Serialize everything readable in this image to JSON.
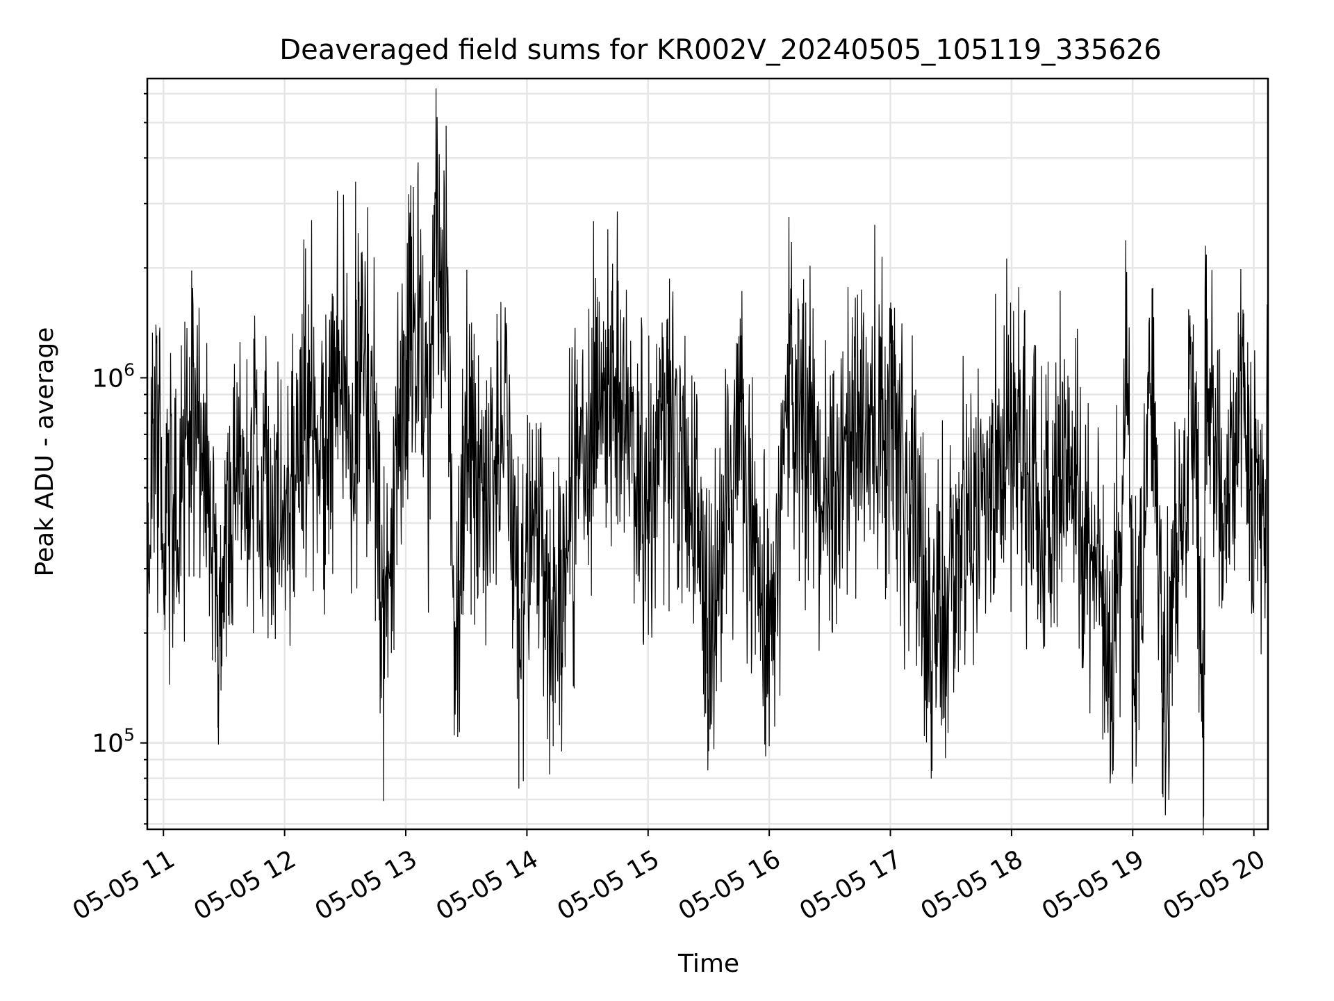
{
  "chart_data": {
    "type": "line",
    "title": "Deaveraged field sums for KR002V_20240505_105119_335626",
    "xlabel": "Time",
    "ylabel": "Peak ADU - average",
    "y_scale": "log",
    "ylim": [
      58000,
      6600000
    ],
    "xlim": [
      "2024-05-05 10:52",
      "2024-05-05 20:07"
    ],
    "x_ticks": [
      "05-05 11",
      "05-05 12",
      "05-05 13",
      "05-05 14",
      "05-05 15",
      "05-05 16",
      "05-05 17",
      "05-05 18",
      "05-05 19",
      "05-05 20"
    ],
    "y_ticks": [
      "10^5",
      "10^6"
    ],
    "grid": true,
    "line_color": "#000000",
    "series": [
      {
        "points": [
          [
            "2024-05-05 10:52",
            420000
          ],
          [
            "2024-05-05 10:55",
            750000
          ],
          [
            "2024-05-05 10:58",
            1300000
          ],
          [
            "2024-05-05 11:00",
            300000
          ],
          [
            "2024-05-05 11:06",
            480000
          ],
          [
            "2024-05-05 11:15",
            1100000
          ],
          [
            "2024-05-05 11:25",
            380000
          ],
          [
            "2024-05-05 11:27",
            110000
          ],
          [
            "2024-05-05 11:35",
            450000
          ],
          [
            "2024-05-05 11:45",
            700000
          ],
          [
            "2024-05-05 11:55",
            400000
          ],
          [
            "2024-05-05 12:03",
            520000
          ],
          [
            "2024-05-05 12:10",
            1300000
          ],
          [
            "2024-05-05 12:20",
            650000
          ],
          [
            "2024-05-05 12:26",
            1800000
          ],
          [
            "2024-05-05 12:32",
            900000
          ],
          [
            "2024-05-05 12:38",
            2200000
          ],
          [
            "2024-05-05 12:45",
            850000
          ],
          [
            "2024-05-05 12:49",
            89000
          ],
          [
            "2024-05-05 12:55",
            650000
          ],
          [
            "2024-05-05 13:00",
            1300000
          ],
          [
            "2024-05-05 13:06",
            3600000
          ],
          [
            "2024-05-05 13:12",
            700000
          ],
          [
            "2024-05-05 13:15",
            6200000
          ],
          [
            "2024-05-05 13:20",
            4900000
          ],
          [
            "2024-05-05 13:24",
            105000
          ],
          [
            "2024-05-05 13:30",
            900000
          ],
          [
            "2024-05-05 13:40",
            500000
          ],
          [
            "2024-05-05 13:50",
            1300000
          ],
          [
            "2024-05-05 13:56",
            75000
          ],
          [
            "2024-05-05 14:05",
            500000
          ],
          [
            "2024-05-05 14:13",
            98000
          ],
          [
            "2024-05-05 14:25",
            600000
          ],
          [
            "2024-05-05 14:40",
            1500000
          ],
          [
            "2024-05-05 15:00",
            450000
          ],
          [
            "2024-05-05 15:10",
            1200000
          ],
          [
            "2024-05-05 15:25",
            450000
          ],
          [
            "2024-05-05 15:30",
            95000
          ],
          [
            "2024-05-05 15:45",
            1300000
          ],
          [
            "2024-05-05 16:00",
            98000
          ],
          [
            "2024-05-05 16:10",
            1500000
          ],
          [
            "2024-05-05 16:30",
            450000
          ],
          [
            "2024-05-05 16:55",
            1300000
          ],
          [
            "2024-05-05 17:10",
            450000
          ],
          [
            "2024-05-05 17:20",
            120000
          ],
          [
            "2024-05-05 17:45",
            500000
          ],
          [
            "2024-05-05 18:00",
            1100000
          ],
          [
            "2024-05-05 18:15",
            400000
          ],
          [
            "2024-05-05 18:30",
            500000
          ],
          [
            "2024-05-05 18:50",
            82000
          ],
          [
            "2024-05-05 18:57",
            1950000
          ],
          [
            "2024-05-05 19:00",
            92000
          ],
          [
            "2024-05-05 19:10",
            1400000
          ],
          [
            "2024-05-05 19:15",
            71000
          ],
          [
            "2024-05-05 19:30",
            1400000
          ],
          [
            "2024-05-05 19:35",
            62000
          ],
          [
            "2024-05-05 19:36",
            2300000
          ],
          [
            "2024-05-05 19:45",
            400000
          ],
          [
            "2024-05-05 19:55",
            1500000
          ],
          [
            "2024-05-05 20:00",
            350000
          ],
          [
            "2024-05-05 20:07",
            600000
          ]
        ]
      }
    ]
  }
}
